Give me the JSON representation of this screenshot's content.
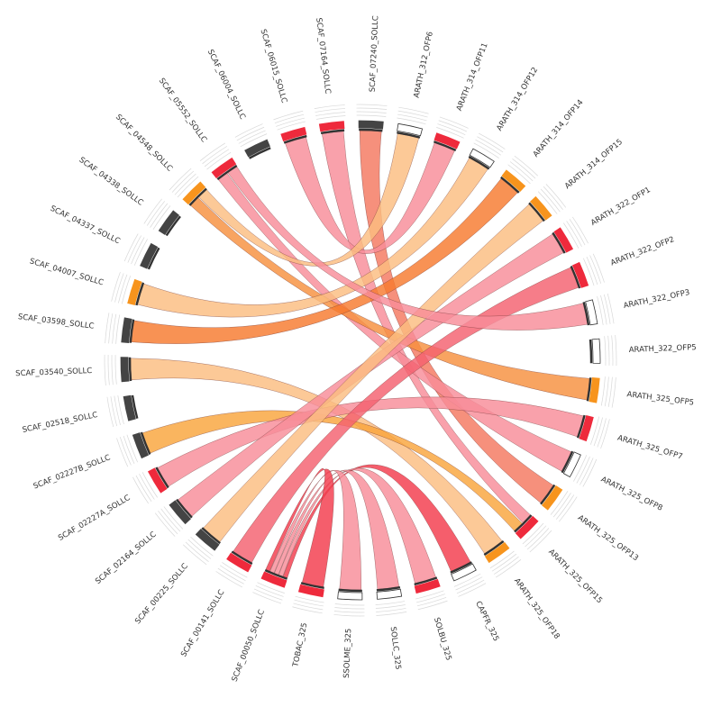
{
  "chart_data": {
    "type": "chord",
    "title": "",
    "nodes": [
      {
        "name": "ARATH_312_OFP6",
        "marker": "white"
      },
      {
        "name": "ARATH_314_OFP11",
        "marker": "red"
      },
      {
        "name": "ARATH_314_OFP12",
        "marker": "white"
      },
      {
        "name": "ARATH_314_OFP14",
        "marker": "orange"
      },
      {
        "name": "ARATH_314_OFP15",
        "marker": "orange"
      },
      {
        "name": "ARATH_322_OFP1",
        "marker": "red"
      },
      {
        "name": "ARATH_322_OFP2",
        "marker": "red"
      },
      {
        "name": "ARATH_322_OFP3",
        "marker": "white"
      },
      {
        "name": "ARATH_322_OFP5",
        "marker": "white"
      },
      {
        "name": "ARATH_325_OFP5",
        "marker": "orange"
      },
      {
        "name": "ARATH_325_OFP7",
        "marker": "red"
      },
      {
        "name": "ARATH_325_OFP8",
        "marker": "white"
      },
      {
        "name": "ARATH_325_OFP13",
        "marker": "orange"
      },
      {
        "name": "ARATH_325_OFP15",
        "marker": "red"
      },
      {
        "name": "ARATH_325_OFP18",
        "marker": "orange"
      },
      {
        "name": "CAPFR_325",
        "marker": "white"
      },
      {
        "name": "SOLBU_325",
        "marker": "red"
      },
      {
        "name": "SOLLC_325",
        "marker": "white"
      },
      {
        "name": "SSOLME_325",
        "marker": "white"
      },
      {
        "name": "TOBAC_325",
        "marker": "red"
      },
      {
        "name": "SCAF_00050_SOLLC",
        "marker": "red"
      },
      {
        "name": "SCAF_00141_SOLLC",
        "marker": "red"
      },
      {
        "name": "SCAF_00225_SOLLC",
        "marker": "dark"
      },
      {
        "name": "SCAF_02164_SOLLC",
        "marker": "dark"
      },
      {
        "name": "SCAF_02227A_SOLLC",
        "marker": "red"
      },
      {
        "name": "SCAF_02227B_SOLLC",
        "marker": "dark"
      },
      {
        "name": "SCAF_02518_SOLLC",
        "marker": "dark"
      },
      {
        "name": "SCAF_03540_SOLLC",
        "marker": "dark"
      },
      {
        "name": "SCAF_03598_SOLLC",
        "marker": "dark"
      },
      {
        "name": "SCAF_04007_SOLLC",
        "marker": "orange"
      },
      {
        "name": "SCAF_04337_SOLLC",
        "marker": "dark"
      },
      {
        "name": "SCAF_04338_SOLLC",
        "marker": "dark"
      },
      {
        "name": "SCAF_04548_SOLLC",
        "marker": "orange"
      },
      {
        "name": "SCAF_05552_SOLLC",
        "marker": "red"
      },
      {
        "name": "SCAF_06004_SOLLC",
        "marker": "dark"
      },
      {
        "name": "SCAF_06015_SOLLC",
        "marker": "red"
      },
      {
        "name": "SCAF_07164_SOLLC",
        "marker": "red"
      },
      {
        "name": "SCAF_07240_SOLLC",
        "marker": "dark"
      }
    ],
    "links": [
      {
        "source": "SCAF_07240_SOLLC",
        "target": "ARATH_325_OFP13",
        "color": "#f4775f"
      },
      {
        "source": "SCAF_07164_SOLLC",
        "target": "ARATH_325_OFP15",
        "color": "#f88c98"
      },
      {
        "source": "SCAF_05552_SOLLC",
        "target": "ARATH_325_OFP8",
        "color": "#f88c98"
      },
      {
        "source": "SCAF_04548_SOLLC",
        "target": "ARATH_325_OFP5",
        "color": "#f7903e"
      },
      {
        "source": "SCAF_04007_SOLLC",
        "target": "ARATH_314_OFP12",
        "color": "#fbbd80"
      },
      {
        "source": "SCAF_03598_SOLLC",
        "target": "ARATH_314_OFP14",
        "color": "#f77a2e"
      },
      {
        "source": "SCAF_03540_SOLLC",
        "target": "ARATH_325_OFP18",
        "color": "#fbbd80"
      },
      {
        "source": "SCAF_02227B_SOLLC",
        "target": "ARATH_325_OFP15",
        "color": "#f9a53c"
      },
      {
        "source": "SCAF_02227A_SOLLC",
        "target": "ARATH_325_OFP7",
        "color": "#f88c98"
      },
      {
        "source": "SCAF_02164_SOLLC",
        "target": "ARATH_322_OFP1",
        "color": "#f88c98"
      },
      {
        "source": "SCAF_00225_SOLLC",
        "target": "ARATH_314_OFP15",
        "color": "#fbbd80"
      },
      {
        "source": "SCAF_00141_SOLLC",
        "target": "ARATH_322_OFP2",
        "color": "#f4606f"
      },
      {
        "source": "SCAF_00050_SOLLC",
        "target": "CAPFR_325",
        "color": "#f33a4c"
      },
      {
        "source": "SCAF_00050_SOLLC",
        "target": "SOLBU_325",
        "color": "#f88c98"
      },
      {
        "source": "SCAF_00050_SOLLC",
        "target": "SOLLC_325",
        "color": "#f88c98"
      },
      {
        "source": "SCAF_00050_SOLLC",
        "target": "SSOLME_325",
        "color": "#f88c98"
      },
      {
        "source": "SCAF_00050_SOLLC",
        "target": "TOBAC_325",
        "color": "#f33a4c"
      },
      {
        "source": "SCAF_06015_SOLLC",
        "target": "ARATH_314_OFP11",
        "color": "#f88c98"
      },
      {
        "source": "SCAF_04548_SOLLC",
        "target": "ARATH_312_OFP6",
        "color": "#fbbd80"
      },
      {
        "source": "SCAF_05552_SOLLC",
        "target": "ARATH_322_OFP3",
        "color": "#f88c98"
      }
    ]
  }
}
